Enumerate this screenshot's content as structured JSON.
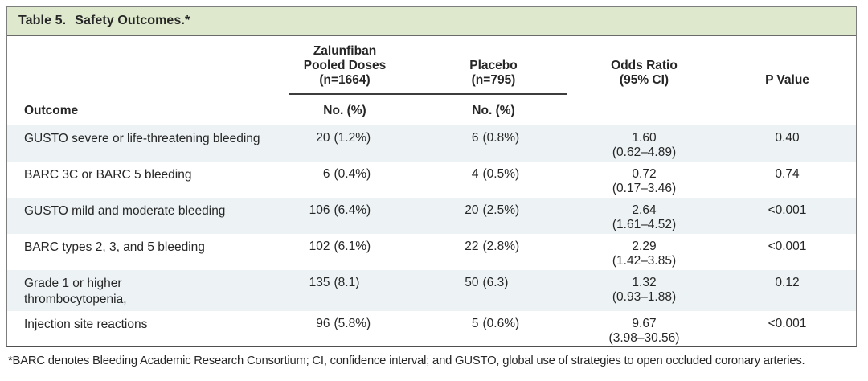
{
  "colors": {
    "title_bg": "#dde8cd",
    "row_tint": "#edf3f5",
    "outer_border": "#7d7d7d",
    "rule": "#3d3d3d",
    "text": "#262626"
  },
  "table": {
    "title_number": "Table 5.",
    "title_text": "Safety Outcomes.*",
    "columns": {
      "outcome_label": "Outcome",
      "zalunfiban": {
        "line1": "Zalunfiban",
        "line2": "Pooled Doses",
        "line3": "(n=1664)",
        "sub": "No. (%)"
      },
      "placebo": {
        "line1": "Placebo",
        "line2": "(n=795)",
        "sub": "No. (%)"
      },
      "odds_ratio": {
        "line1": "Odds Ratio",
        "line2": "(95% CI)"
      },
      "p_value": {
        "label": "P Value"
      }
    },
    "rows": [
      {
        "outcome": "GUSTO severe or life-threatening bleeding",
        "zalunfiban": "20 (1.2%)",
        "placebo": "6 (0.8%)",
        "or": "1.60",
        "ci": "(0.62–4.89)",
        "p": "0.40"
      },
      {
        "outcome": "BARC 3C or BARC 5 bleeding",
        "zalunfiban": "6 (0.4%)",
        "placebo": "4 (0.5%)",
        "or": "0.72",
        "ci": "(0.17–3.46)",
        "p": "0.74"
      },
      {
        "outcome": "GUSTO mild and moderate bleeding",
        "zalunfiban": "106 (6.4%)",
        "placebo": "20 (2.5%)",
        "or": "2.64",
        "ci": "(1.61–4.52)",
        "p": "<0.001"
      },
      {
        "outcome": "BARC types 2, 3, and 5 bleeding",
        "zalunfiban": "102 (6.1%)",
        "placebo": "22 (2.8%)",
        "or": "2.29",
        "ci": "(1.42–3.85)",
        "p": "<0.001"
      },
      {
        "outcome": "Grade 1 or higher\nthrombocytopenia,",
        "zalunfiban": "135 (8.1)",
        "placebo": "50 (6.3)",
        "or": "1.32",
        "ci": "(0.93–1.88)",
        "p": "0.12"
      },
      {
        "outcome": "Injection site reactions",
        "zalunfiban": "96 (5.8%)",
        "placebo": "5 (0.6%)",
        "or": "9.67",
        "ci": "(3.98–30.56)",
        "p": "<0.001"
      }
    ],
    "footnote": "*BARC denotes Bleeding Academic Research Consortium; CI, confidence interval; and GUSTO, global use of strategies to open occluded coronary arteries."
  }
}
